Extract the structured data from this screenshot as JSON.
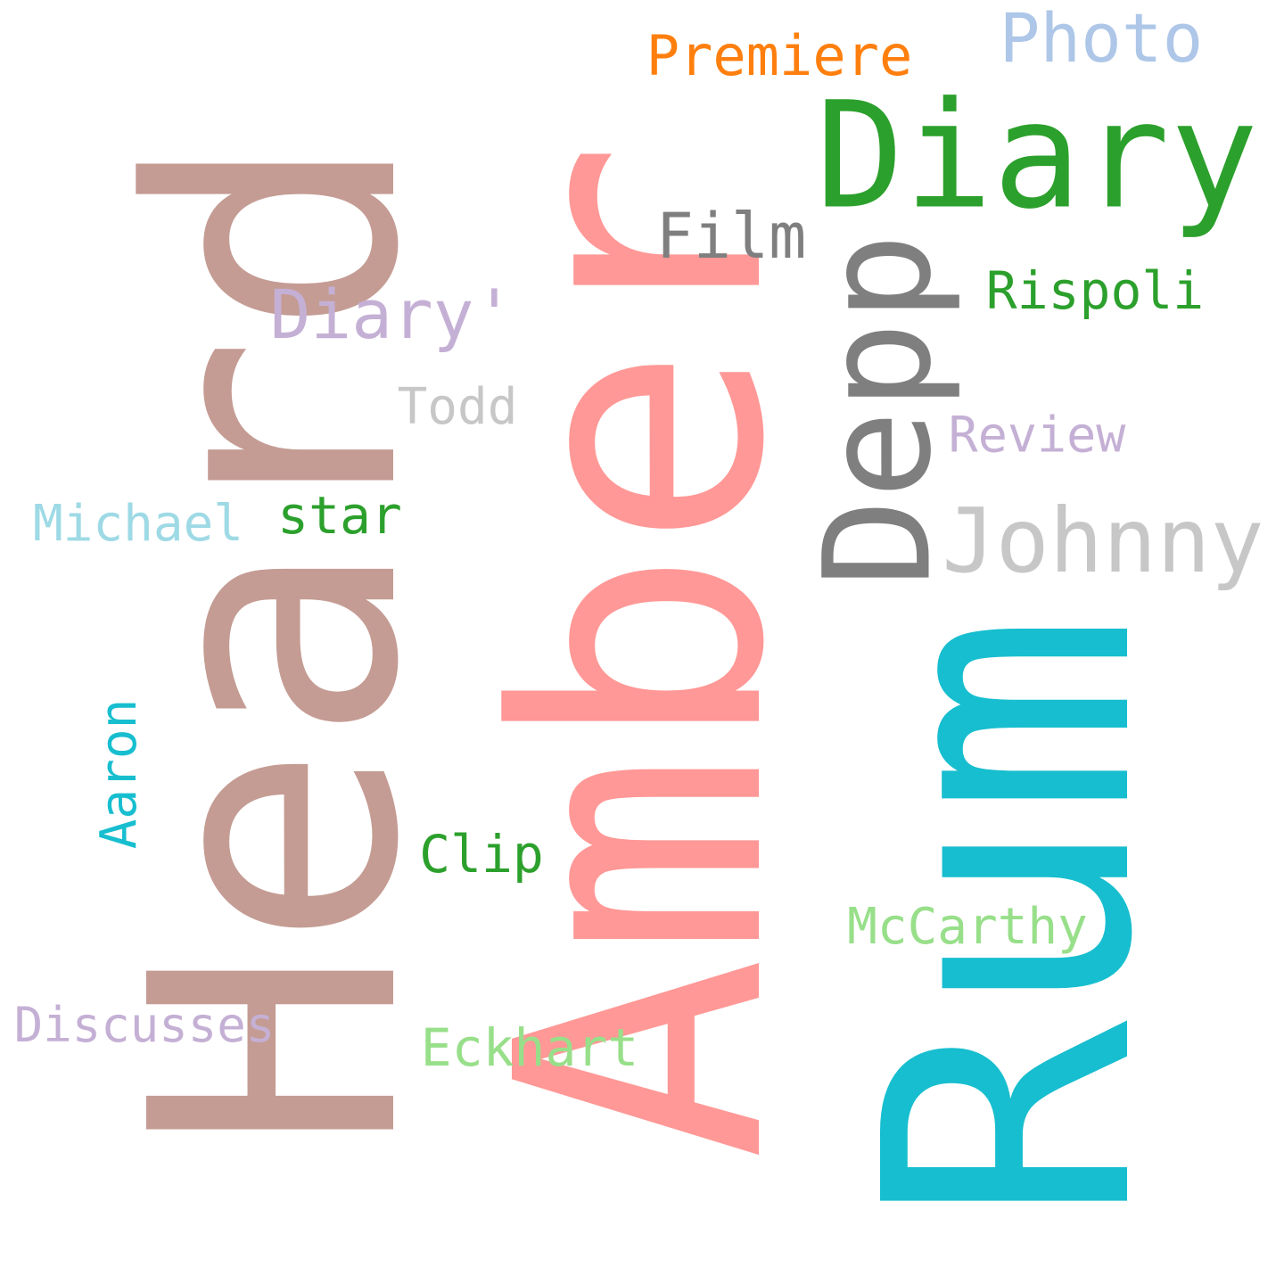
{
  "words": [
    {
      "id": "heard",
      "text": "Heard",
      "color": "#c49c94",
      "orientation": "vertical"
    },
    {
      "id": "amber",
      "text": "Amber",
      "color": "#ff9896",
      "orientation": "vertical"
    },
    {
      "id": "rum",
      "text": "Rum",
      "color": "#17becf",
      "orientation": "vertical"
    },
    {
      "id": "depp",
      "text": "Depp",
      "color": "#7f7f7f",
      "orientation": "vertical"
    },
    {
      "id": "diary",
      "text": "Diary",
      "color": "#2ca02c",
      "orientation": "horizontal"
    },
    {
      "id": "johnny",
      "text": "Johnny",
      "color": "#c7c7c7",
      "orientation": "horizontal"
    },
    {
      "id": "photo",
      "text": "Photo",
      "color": "#aec7e8",
      "orientation": "horizontal"
    },
    {
      "id": "premiere",
      "text": "Premiere",
      "color": "#ff7f0e",
      "orientation": "horizontal"
    },
    {
      "id": "film",
      "text": "Film",
      "color": "#7f7f7f",
      "orientation": "horizontal"
    },
    {
      "id": "diaryq",
      "text": "Diary'",
      "color": "#c5b0d5",
      "orientation": "horizontal"
    },
    {
      "id": "rispoli",
      "text": "Rispoli",
      "color": "#2ca02c",
      "orientation": "horizontal"
    },
    {
      "id": "todd",
      "text": "Todd",
      "color": "#c7c7c7",
      "orientation": "horizontal"
    },
    {
      "id": "review",
      "text": "Review",
      "color": "#c5b0d5",
      "orientation": "horizontal"
    },
    {
      "id": "star",
      "text": "star",
      "color": "#2ca02c",
      "orientation": "horizontal"
    },
    {
      "id": "michael",
      "text": "Michael",
      "color": "#9edae5",
      "orientation": "horizontal"
    },
    {
      "id": "aaron",
      "text": "Aaron",
      "color": "#17becf",
      "orientation": "vertical"
    },
    {
      "id": "clip",
      "text": "Clip",
      "color": "#2ca02c",
      "orientation": "horizontal"
    },
    {
      "id": "mccarthy",
      "text": "McCarthy",
      "color": "#98df8a",
      "orientation": "horizontal"
    },
    {
      "id": "discusses",
      "text": "Discusses",
      "color": "#c5b0d5",
      "orientation": "horizontal"
    },
    {
      "id": "eckhart",
      "text": "Eckhart",
      "color": "#98df8a",
      "orientation": "horizontal"
    }
  ]
}
